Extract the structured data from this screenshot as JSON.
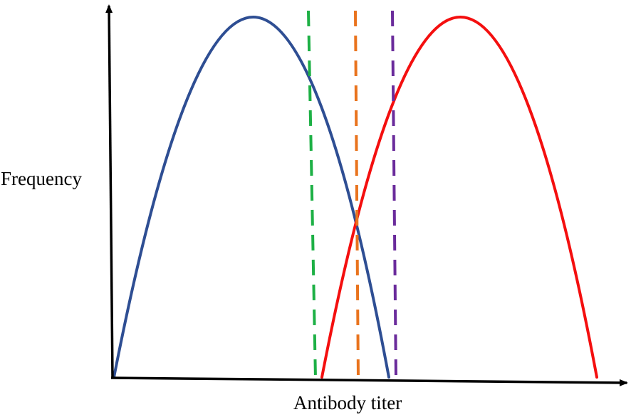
{
  "diagram": {
    "x_axis_label": "Antibody titer",
    "y_axis_label": "Frequency"
  },
  "colors": {
    "axis": "#000000",
    "negative_curve": "#2E4E93",
    "positive_curve": "#F40F0F",
    "cutoff_low": "#1DB045",
    "cutoff_mid": "#E9731D",
    "cutoff_high": "#6A2B9B"
  }
}
